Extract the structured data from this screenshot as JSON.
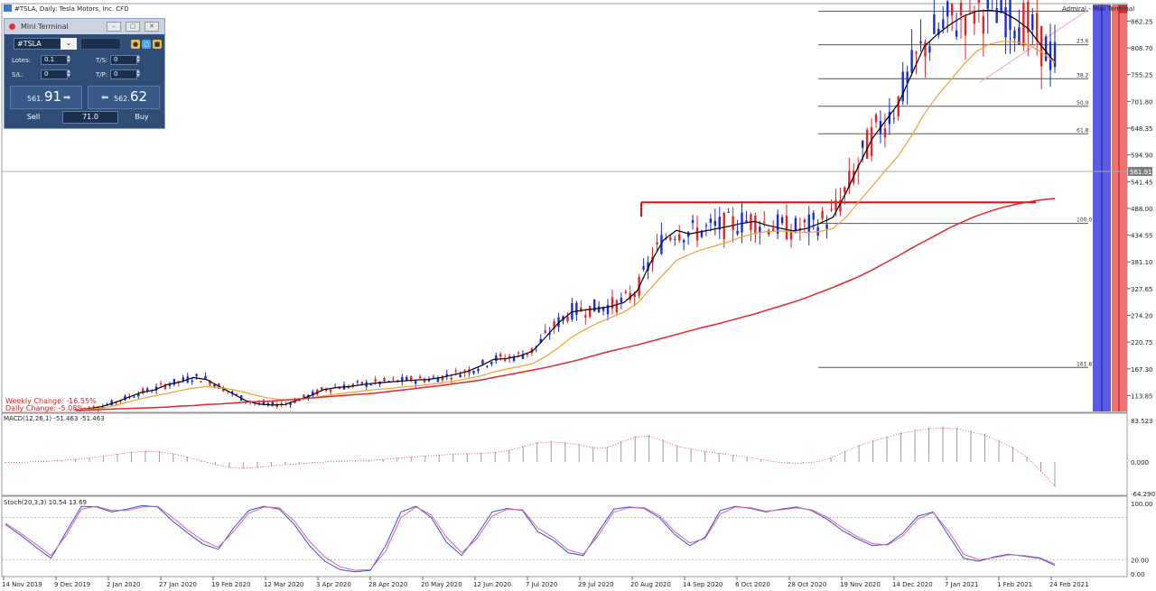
{
  "header": {
    "title": "#TSLA, Daily:  Tesla Motors, Inc.  CFD",
    "indicator_label": "Admiral - Mini Terminal"
  },
  "mini_terminal": {
    "title": "Mini Terminal",
    "symbol": "#TSLA",
    "lots_label": "Lotes:",
    "lots_value": "0.1",
    "ts_label": "T/S:",
    "ts_value": "0",
    "sl_label": "S/L:",
    "sl_value": "0",
    "tp_label": "T/P:",
    "tp_value": "0",
    "sell_small": "561.",
    "sell_big": "91",
    "buy_small": "562.",
    "buy_big": "62",
    "sell_label": "Sell",
    "buy_label": "Buy",
    "volume": "71.0"
  },
  "overlay": {
    "weekly_change": "Weekly Change: -16.55%",
    "daily_change": "Daily Change: -5.08%"
  },
  "chart_data": [
    {
      "type": "candlestick",
      "panel": "price",
      "yaxis_ticks": [
        "862.25",
        "808.70",
        "755.25",
        "701.80",
        "648.35",
        "594.90",
        "541.45",
        "488.00",
        "434.55",
        "381.10",
        "327.65",
        "274.20",
        "220.75",
        "167.30",
        "113.85"
      ],
      "ylim": [
        84,
        890
      ],
      "current_price": 561.91,
      "current_price_label": "561.91",
      "support_level": 500,
      "fibonacci": [
        {
          "label": "23.6",
          "value": 815
        },
        {
          "label": "38.2",
          "value": 747
        },
        {
          "label": "50.0",
          "value": 692
        },
        {
          "label": "61.8",
          "value": 637
        },
        {
          "label": "100.0",
          "value": 458
        },
        {
          "label": "161.8",
          "value": 170
        }
      ],
      "moving_averages": [
        {
          "color": "#000000",
          "values": [
            86,
            88,
            92,
            100,
            110,
            120,
            125,
            136,
            141,
            150,
            146,
            132,
            118,
            104,
            97,
            95,
            96,
            105,
            114,
            126,
            130,
            132,
            136,
            139,
            141,
            143,
            145,
            146,
            150,
            156,
            162,
            173,
            186,
            188,
            193,
            203,
            231,
            260,
            281,
            285,
            288,
            292,
            300,
            323,
            378,
            424,
            444,
            437,
            442,
            447,
            452,
            458,
            462,
            454,
            448,
            443,
            448,
            458,
            470,
            519,
            575,
            627,
            662,
            697,
            754,
            812,
            836,
            856,
            872,
            882,
            884,
            880,
            866,
            846,
            812,
            780
          ]
        },
        {
          "color": "#f0a030",
          "values": [
            86,
            87,
            89,
            94,
            101,
            108,
            113,
            118,
            124,
            129,
            132,
            130,
            126,
            120,
            113,
            108,
            105,
            106,
            109,
            113,
            117,
            120,
            123,
            126,
            128,
            131,
            133,
            136,
            139,
            143,
            148,
            153,
            161,
            167,
            172,
            178,
            192,
            210,
            231,
            246,
            259,
            270,
            281,
            298,
            327,
            356,
            384,
            396,
            406,
            413,
            421,
            431,
            438,
            442,
            443,
            441,
            440,
            442,
            448,
            470,
            502,
            532,
            563,
            593,
            632,
            677,
            713,
            744,
            775,
            802,
            816,
            822,
            821,
            815,
            800,
            780
          ]
        },
        {
          "color": "#e32626",
          "values": [
            84,
            85,
            86,
            87,
            88,
            89,
            90,
            91,
            93,
            94,
            96,
            97,
            99,
            101,
            102,
            103,
            105,
            107,
            109,
            111,
            113,
            115,
            117,
            119,
            122,
            125,
            128,
            131,
            134,
            138,
            141,
            145,
            150,
            155,
            160,
            165,
            170,
            176,
            182,
            189,
            196,
            203,
            209,
            215,
            222,
            229,
            236,
            243,
            250,
            256,
            263,
            270,
            277,
            285,
            293,
            301,
            310,
            320,
            330,
            341,
            352,
            365,
            379,
            393,
            408,
            422,
            436,
            450,
            462,
            473,
            482,
            490,
            496,
            501,
            505,
            508
          ]
        }
      ],
      "x_labels": [
        "14 Nov 2019",
        "9 Dec 2019",
        "2 Jan 2020",
        "27 Jan 2020",
        "19 Feb 2020",
        "12 Mar 2020",
        "3 Apr 2020",
        "28 Apr 2020",
        "20 May 2020",
        "12 Jun 2020",
        "7 Jul 2020",
        "29 Jul 2020",
        "20 Aug 2020",
        "14 Sep 2020",
        "6 Oct 2020",
        "28 Oct 2020",
        "19 Nov 2020",
        "14 Dec 2020",
        "7 Jan 2021",
        "1 Feb 2021",
        "24 Feb 2021"
      ]
    },
    {
      "type": "bar",
      "panel": "macd",
      "title": "MACD(12,26,1) -51.463 -51.463",
      "yaxis_ticks": [
        "83.523",
        "0.000",
        "-64.290"
      ],
      "ylim": [
        -64.29,
        83.523
      ],
      "values": [
        -2,
        -1,
        0,
        1,
        3,
        5,
        8,
        12,
        16,
        20,
        22,
        21,
        17,
        10,
        2,
        -6,
        -12,
        -14,
        -12,
        -9,
        -6,
        -4,
        -2,
        0,
        1,
        2,
        3,
        5,
        8,
        10,
        12,
        14,
        16,
        17,
        18,
        20,
        24,
        32,
        40,
        42,
        40,
        36,
        30,
        30,
        42,
        52,
        55,
        45,
        33,
        27,
        22,
        18,
        14,
        10,
        5,
        0,
        -3,
        -3,
        0,
        8,
        22,
        34,
        44,
        52,
        60,
        66,
        70,
        72,
        70,
        64,
        56,
        44,
        30,
        10,
        -20,
        -51
      ]
    },
    {
      "type": "line",
      "panel": "stochastic",
      "title": "Stoch(20,3,3) 10.54 13.69",
      "yaxis_ticks": [
        "100.00",
        "20.00",
        "0.00"
      ],
      "ylim": [
        0,
        100
      ],
      "series": [
        {
          "color": "#3050e0",
          "values": [
            70,
            55,
            38,
            22,
            60,
            96,
            95,
            88,
            92,
            97,
            95,
            75,
            58,
            42,
            35,
            65,
            90,
            96,
            92,
            70,
            40,
            18,
            6,
            3,
            5,
            40,
            88,
            96,
            80,
            45,
            26,
            55,
            88,
            93,
            90,
            60,
            48,
            30,
            26,
            60,
            92,
            95,
            93,
            80,
            56,
            40,
            52,
            90,
            96,
            93,
            88,
            92,
            95,
            90,
            78,
            62,
            50,
            40,
            42,
            58,
            82,
            88,
            55,
            22,
            18,
            24,
            28,
            25,
            22,
            12
          ]
        },
        {
          "color": "#e060a0",
          "values": [
            72,
            58,
            42,
            26,
            55,
            92,
            96,
            90,
            90,
            95,
            96,
            80,
            62,
            47,
            38,
            60,
            86,
            95,
            94,
            75,
            46,
            24,
            10,
            5,
            6,
            32,
            80,
            95,
            84,
            52,
            30,
            50,
            82,
            92,
            91,
            65,
            52,
            34,
            28,
            55,
            88,
            94,
            94,
            83,
            60,
            44,
            50,
            85,
            95,
            94,
            89,
            91,
            94,
            91,
            81,
            66,
            53,
            43,
            41,
            54,
            78,
            87,
            61,
            28,
            20,
            23,
            27,
            26,
            23,
            14
          ]
        }
      ]
    }
  ]
}
